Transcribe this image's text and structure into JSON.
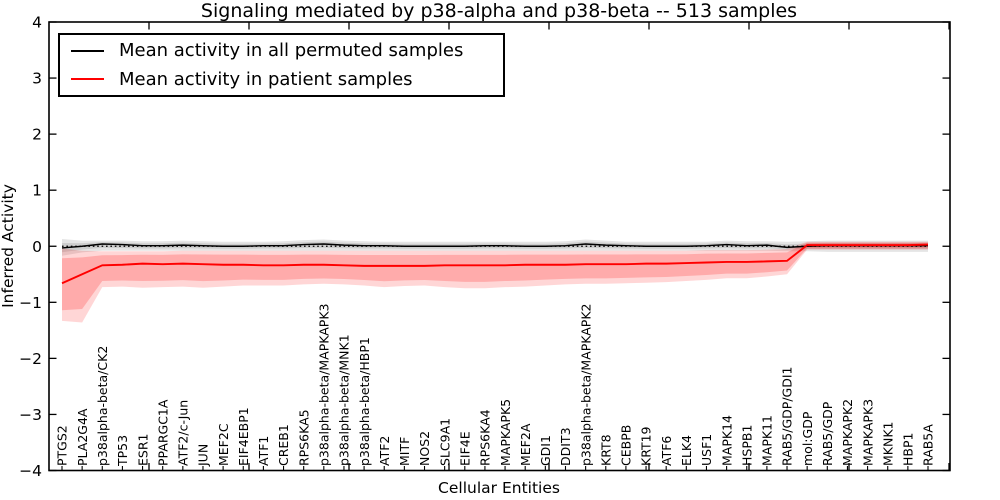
{
  "chart_data": {
    "type": "line",
    "title": "Signaling mediated by p38-alpha and p38-beta -- 513 samples",
    "xlabel": "Cellular Entities",
    "ylabel": "Inferred Activity",
    "ylim": [
      -4,
      4
    ],
    "ytick_values": [
      4,
      3,
      2,
      1,
      0,
      -1,
      -2,
      -3,
      -4
    ],
    "ytick_labels": [
      "4",
      "3",
      "2",
      "1",
      "0",
      "−1",
      "−2",
      "−3",
      "−4"
    ],
    "grid": false,
    "legend_position": "upper left",
    "reference_line_y": 0,
    "categories": [
      "PTGS2",
      "PLA2G4A",
      "p38alpha-beta/CK2",
      "TP53",
      "ESR1",
      "PPARGC1A",
      "ATF2/c-Jun",
      "JUN",
      "MEF2C",
      "EIF4EBP1",
      "ATF1",
      "CREB1",
      "RPS6KA5",
      "p38alpha-beta/MAPKAPK3",
      "p38alpha-beta/MNK1",
      "p38alpha-beta/HBP1",
      "ATF2",
      "MITF",
      "NOS2",
      "SLC9A1",
      "EIF4E",
      "RPS6KA4",
      "MAPKAPK5",
      "MEF2A",
      "GDI1",
      "DDIT3",
      "p38alpha-beta/MAPKAPK2",
      "KRT8",
      "CEBPB",
      "KRT19",
      "ATF6",
      "ELK4",
      "USF1",
      "MAPK14",
      "HSPB1",
      "MAPK11",
      "RAB5/GDP/GDI1",
      "mol:GDP",
      "RAB5/GDP",
      "MAPKAPK2",
      "MAPKAPK3",
      "MKNK1",
      "HBP1",
      "RAB5A"
    ],
    "series": [
      {
        "name": "Mean activity in all permuted samples",
        "color": "#000000",
        "values": [
          -0.03,
          0.0,
          0.04,
          0.03,
          0.01,
          0.01,
          0.02,
          0.01,
          0.0,
          0.0,
          0.01,
          0.01,
          0.03,
          0.04,
          0.02,
          0.01,
          0.01,
          0.0,
          0.0,
          0.0,
          0.0,
          0.01,
          0.01,
          0.0,
          0.0,
          0.01,
          0.04,
          0.02,
          0.01,
          0.0,
          0.0,
          0.0,
          0.01,
          0.03,
          0.01,
          0.02,
          -0.02,
          0.0,
          0.01,
          0.01,
          0.01,
          0.01,
          0.01,
          0.01
        ],
        "band_upper": [
          0.13,
          0.1,
          0.1,
          0.1,
          0.09,
          0.09,
          0.1,
          0.09,
          0.08,
          0.08,
          0.08,
          0.09,
          0.11,
          0.12,
          0.1,
          0.09,
          0.08,
          0.08,
          0.08,
          0.08,
          0.08,
          0.08,
          0.08,
          0.08,
          0.08,
          0.09,
          0.12,
          0.1,
          0.08,
          0.08,
          0.08,
          0.08,
          0.08,
          0.1,
          0.09,
          0.09,
          0.08,
          0.09,
          0.1,
          0.1,
          0.1,
          0.1,
          0.1,
          0.1
        ],
        "band_lower": [
          -0.17,
          -0.11,
          -0.08,
          -0.08,
          -0.08,
          -0.08,
          -0.08,
          -0.08,
          -0.08,
          -0.08,
          -0.08,
          -0.08,
          -0.08,
          -0.08,
          -0.08,
          -0.08,
          -0.08,
          -0.08,
          -0.08,
          -0.08,
          -0.08,
          -0.08,
          -0.08,
          -0.08,
          -0.08,
          -0.08,
          -0.08,
          -0.08,
          -0.08,
          -0.08,
          -0.08,
          -0.08,
          -0.08,
          -0.08,
          -0.08,
          -0.08,
          -0.09,
          -0.09,
          -0.1,
          -0.1,
          -0.1,
          -0.1,
          -0.1,
          -0.1
        ]
      },
      {
        "name": "Mean activity in patient samples",
        "color": "#ff0000",
        "values": [
          -0.66,
          -0.5,
          -0.34,
          -0.33,
          -0.31,
          -0.32,
          -0.31,
          -0.32,
          -0.33,
          -0.33,
          -0.34,
          -0.34,
          -0.33,
          -0.33,
          -0.34,
          -0.35,
          -0.35,
          -0.35,
          -0.35,
          -0.34,
          -0.34,
          -0.34,
          -0.34,
          -0.33,
          -0.33,
          -0.33,
          -0.32,
          -0.32,
          -0.32,
          -0.31,
          -0.31,
          -0.3,
          -0.29,
          -0.28,
          -0.28,
          -0.27,
          -0.26,
          0.02,
          0.02,
          0.02,
          0.02,
          0.02,
          0.02,
          0.03
        ],
        "band_upper": [
          -0.04,
          -0.08,
          -0.09,
          -0.09,
          -0.09,
          -0.09,
          -0.08,
          -0.08,
          -0.08,
          -0.08,
          -0.08,
          -0.08,
          -0.08,
          -0.08,
          -0.08,
          -0.08,
          -0.08,
          -0.08,
          -0.08,
          -0.08,
          -0.08,
          -0.08,
          -0.08,
          -0.08,
          -0.08,
          -0.08,
          -0.08,
          -0.08,
          -0.08,
          -0.08,
          -0.08,
          -0.08,
          -0.07,
          -0.07,
          -0.07,
          -0.06,
          -0.05,
          0.08,
          0.08,
          0.08,
          0.08,
          0.08,
          0.08,
          0.08
        ],
        "band_lower": [
          -1.33,
          -1.36,
          -0.73,
          -0.72,
          -0.74,
          -0.73,
          -0.72,
          -0.74,
          -0.72,
          -0.7,
          -0.7,
          -0.7,
          -0.68,
          -0.67,
          -0.68,
          -0.7,
          -0.73,
          -0.71,
          -0.7,
          -0.73,
          -0.75,
          -0.75,
          -0.73,
          -0.72,
          -0.7,
          -0.68,
          -0.67,
          -0.67,
          -0.66,
          -0.65,
          -0.64,
          -0.62,
          -0.6,
          -0.57,
          -0.57,
          -0.54,
          -0.5,
          -0.06,
          -0.06,
          -0.06,
          -0.06,
          -0.06,
          -0.06,
          -0.06
        ]
      }
    ]
  }
}
